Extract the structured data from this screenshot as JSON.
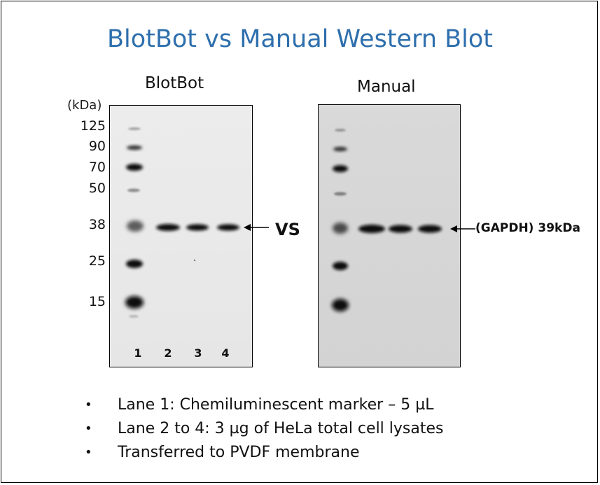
{
  "title": "BlotBot vs Manual Western Blot",
  "panels": {
    "left_label": "BlotBot",
    "right_label": "Manual"
  },
  "marker_axis": {
    "unit_label": "(kDa)",
    "ticks": [
      "125",
      "90",
      "70",
      "50",
      "38",
      "25",
      "15"
    ]
  },
  "lanes": [
    "1",
    "2",
    "3",
    "4"
  ],
  "comparison_label": "VS",
  "band_annotation": "(GAPDH) 39kDa",
  "notes": [
    "Lane 1: Chemiluminescent marker – 5 µL",
    "Lane 2 to 4: 3 µg of HeLa total cell lysates",
    "Transferred to PVDF membrane"
  ],
  "colors": {
    "title": "#2e6fad",
    "blotbot_membrane": "#e8e8e8",
    "manual_membrane": "#d6d6d6",
    "band": "#111111"
  }
}
